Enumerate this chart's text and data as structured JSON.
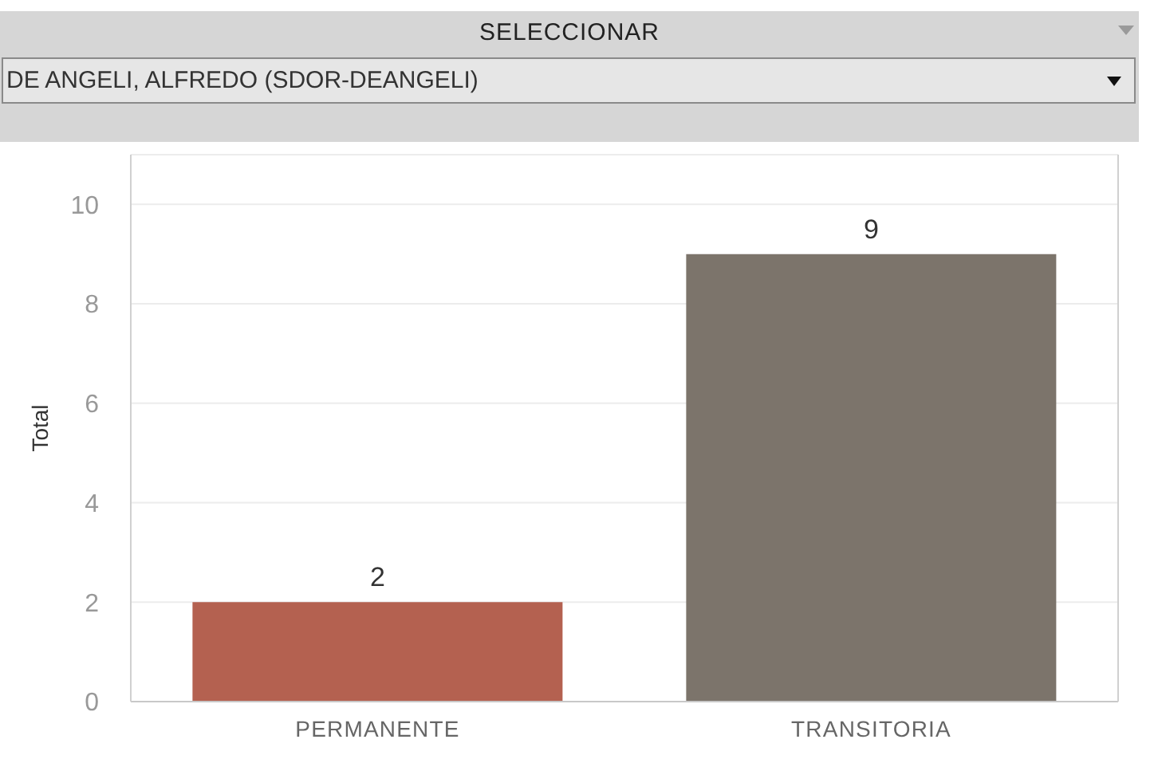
{
  "chart_data": {
    "type": "bar",
    "title": "SELECCIONAR",
    "subtitle": "DE ANGELI, ALFREDO (SDOR-DEANGELI)",
    "ylabel": "Total",
    "categories": [
      "PERMANENTE",
      "TRANSITORIA"
    ],
    "values": [
      2,
      9
    ],
    "colors": [
      "#b46150",
      "#7c746b"
    ],
    "ylim": [
      0,
      11
    ],
    "yticks": [
      0,
      2,
      4,
      6,
      8,
      10
    ],
    "grid": "y",
    "data_labels": true
  }
}
